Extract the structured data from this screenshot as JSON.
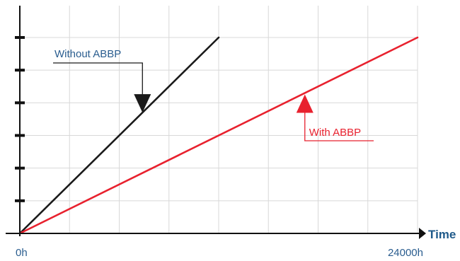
{
  "chart_data": {
    "type": "line",
    "title": "",
    "xlabel": "Time",
    "ylabel": "",
    "xlim": [
      0,
      24000
    ],
    "ylim": [
      0,
      6
    ],
    "x_tick_labels": [
      {
        "value": 0,
        "label": "0h"
      },
      {
        "value": 24000,
        "label": "24000h"
      }
    ],
    "y_ticks": [
      1,
      2,
      3,
      4,
      5,
      6
    ],
    "grid": true,
    "series": [
      {
        "name": "Without ABBP",
        "color": "#1a1a1a",
        "x": [
          0,
          12000
        ],
        "y": [
          0,
          6
        ]
      },
      {
        "name": "With ABBP",
        "color": "#e8212e",
        "x": [
          0,
          24000
        ],
        "y": [
          0,
          6
        ]
      }
    ],
    "annotations": [
      {
        "text": "Without ABBP",
        "color": "#2a5d8f",
        "line_color": "#1a1a1a",
        "arrow": "down",
        "series": 0,
        "x": 7400
      },
      {
        "text": "With ABBP",
        "color": "#e8212e",
        "line_color": "#e8212e",
        "arrow": "up",
        "series": 1,
        "x": 17200
      }
    ]
  }
}
